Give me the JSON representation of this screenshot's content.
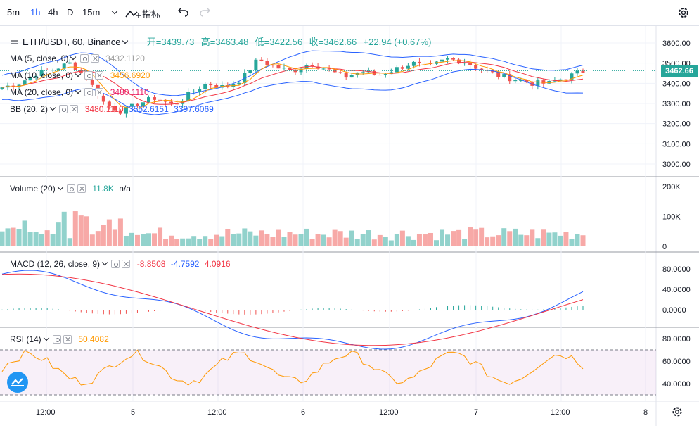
{
  "toolbar": {
    "intervals": [
      "5m",
      "1h",
      "4h",
      "D",
      "15m"
    ],
    "active_interval": "1h",
    "indicators_label": "指标"
  },
  "symbol": {
    "title": "ETH/USDT, 60, Binance",
    "open": "开=3439.73",
    "high": "高=3463.48",
    "low": "低=3422.56",
    "close": "收=3462.66",
    "change": "+22.94 (+0.67%)"
  },
  "indicators": {
    "ma5": {
      "label": "MA (5, close, 0)",
      "value": "3432.1120"
    },
    "ma10": {
      "label": "MA (10, close, 0)",
      "value": "3456.6920"
    },
    "ma20": {
      "label": "MA (20, close, 0)",
      "value": "3480.1110"
    },
    "bb": {
      "label": "BB (20, 2)",
      "v1": "3480.1110",
      "v2": "3562.6151",
      "v3": "3397.6069"
    },
    "volume": {
      "label": "Volume (20)",
      "v1": "11.8K",
      "v2": "n/a"
    },
    "macd": {
      "label": "MACD (12, 26, close, 9)",
      "v1": "-8.8508",
      "v2": "-4.7592",
      "v3": "4.0916"
    },
    "rsi": {
      "label": "RSI (14)",
      "v1": "50.4082"
    }
  },
  "price_axis": {
    "ticks": [
      "3600.00",
      "3500.00",
      "3400.00",
      "3300.00",
      "3200.00",
      "3100.00",
      "3000.00"
    ],
    "last_price": "3462.66"
  },
  "volume_axis": {
    "ticks": [
      "200K",
      "100K",
      "0"
    ]
  },
  "macd_axis": {
    "ticks": [
      "80.0000",
      "40.0000",
      "0.0000"
    ]
  },
  "rsi_axis": {
    "ticks": [
      "80.0000",
      "60.0000",
      "40.0000"
    ]
  },
  "time_axis": {
    "ticks": [
      "12:00",
      "5",
      "12:00",
      "6",
      "12:00",
      "7",
      "12:00",
      "8"
    ]
  },
  "colors": {
    "up": "#26a69a",
    "down": "#ef5350",
    "accent": "#2962ff"
  }
}
